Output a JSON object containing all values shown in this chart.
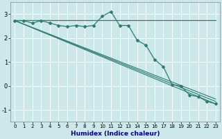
{
  "xlabel": "Humidex (Indice chaleur)",
  "bg_color": "#cce8e8",
  "line_color": "#2e7d6e",
  "grid_color": "#b0d8d8",
  "xlim": [
    -0.5,
    23.5
  ],
  "ylim": [
    -1.5,
    3.5
  ],
  "xticks": [
    0,
    1,
    2,
    3,
    4,
    5,
    6,
    7,
    8,
    9,
    10,
    11,
    12,
    13,
    14,
    15,
    16,
    17,
    18,
    19,
    20,
    21,
    22,
    23
  ],
  "yticks": [
    -1,
    0,
    1,
    2,
    3
  ],
  "flat_line": {
    "x": [
      0,
      23
    ],
    "y": [
      2.75,
      2.75
    ]
  },
  "jagged_line": {
    "x": [
      0,
      1,
      2,
      3,
      4,
      5,
      6,
      7,
      8,
      9,
      10,
      11,
      12,
      13,
      14,
      15,
      16,
      17,
      18,
      19,
      20,
      21,
      22,
      23
    ],
    "y": [
      2.72,
      2.72,
      2.62,
      2.72,
      2.62,
      2.52,
      2.47,
      2.52,
      2.47,
      2.52,
      2.9,
      3.1,
      2.52,
      2.52,
      1.9,
      1.7,
      1.1,
      0.8,
      0.05,
      0.0,
      -0.38,
      -0.45,
      -0.65,
      -0.75
    ]
  },
  "reg_lines": [
    {
      "x": [
        0,
        23
      ],
      "y": [
        2.72,
        -0.55
      ]
    },
    {
      "x": [
        0,
        23
      ],
      "y": [
        2.72,
        -0.65
      ]
    },
    {
      "x": [
        0,
        23
      ],
      "y": [
        2.72,
        -0.75
      ]
    }
  ]
}
